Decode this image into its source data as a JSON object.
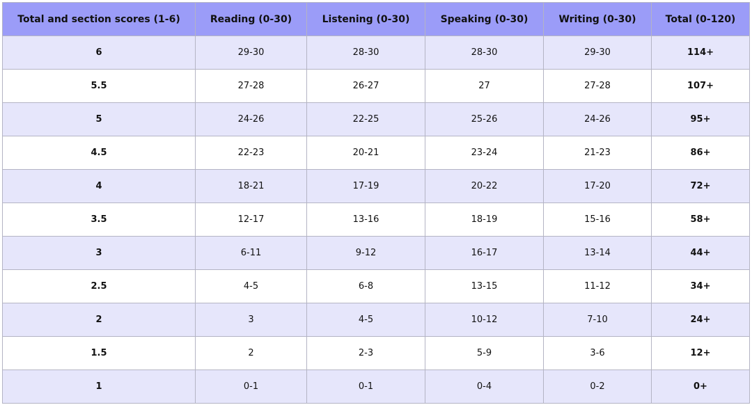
{
  "table": {
    "header": [
      "Total and section scores (1-6)",
      "Reading (0-30)",
      "Listening (0-30)",
      "Speaking (0-30)",
      "Writing (0-30)",
      "Total (0-120)"
    ],
    "rows": [
      [
        "6",
        "29-30",
        "28-30",
        "28-30",
        "29-30",
        "114+"
      ],
      [
        "5.5",
        "27-28",
        "26-27",
        "27",
        "27-28",
        "107+"
      ],
      [
        "5",
        "24-26",
        "22-25",
        "25-26",
        "24-26",
        "95+"
      ],
      [
        "4.5",
        "22-23",
        "20-21",
        "23-24",
        "21-23",
        "86+"
      ],
      [
        "4",
        "18-21",
        "17-19",
        "20-22",
        "17-20",
        "72+"
      ],
      [
        "3.5",
        "12-17",
        "13-16",
        "18-19",
        "15-16",
        "58+"
      ],
      [
        "3",
        "6-11",
        "9-12",
        "16-17",
        "13-14",
        "44+"
      ],
      [
        "2.5",
        "4-5",
        "6-8",
        "13-15",
        "11-12",
        "34+"
      ],
      [
        "2",
        "3",
        "4-5",
        "10-12",
        "7-10",
        "24+"
      ],
      [
        "1.5",
        "2",
        "2-3",
        "5-9",
        "3-6",
        "12+"
      ],
      [
        "1",
        "0-1",
        "0-1",
        "0-4",
        "0-2",
        "0+"
      ]
    ]
  }
}
